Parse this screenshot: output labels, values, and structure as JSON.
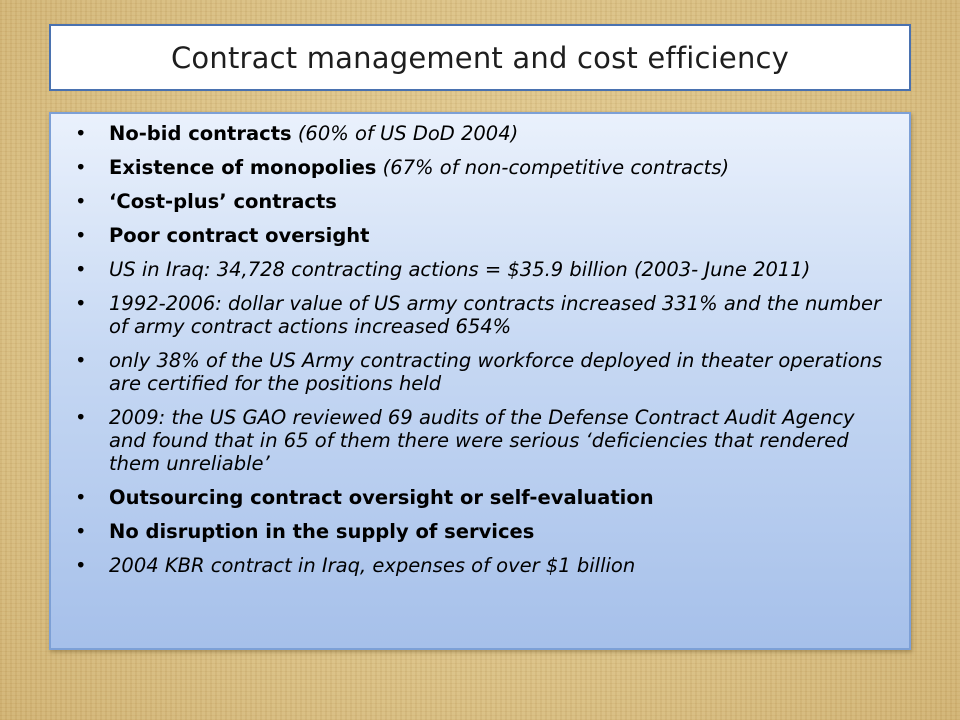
{
  "title": "Contract management and cost efficiency",
  "bullet_symbol": "•",
  "bullets": [
    {
      "bold": "No-bid contracts",
      "italic": " (60% of US DoD 2004)"
    },
    {
      "bold": "Existence of monopolies",
      "italic": " (67% of non-competitive contracts)"
    },
    {
      "bold": "‘Cost-plus’ contracts"
    },
    {
      "bold": "Poor contract oversight"
    },
    {
      "italic": "US in Iraq: 34,728 contracting actions = $35.9 billion (2003- June 2011)"
    },
    {
      "italic": "1992-2006: dollar value of US army contracts increased 331% and the number of army contract actions increased 654%"
    },
    {
      "italic": "only 38% of the US Army contracting workforce deployed in theater operations are certified for the positions held"
    },
    {
      "italic": "2009: the US GAO reviewed 69 audits of the Defense Contract Audit Agency and found that in 65 of them there were serious ‘deficiencies that rendered them unreliable’"
    },
    {
      "bold": "Outsourcing contract oversight or self-evaluation"
    },
    {
      "bold": "No disruption in the supply of services"
    },
    {
      "italic": "2004 KBR contract in Iraq, expenses of over $1 billion"
    }
  ]
}
